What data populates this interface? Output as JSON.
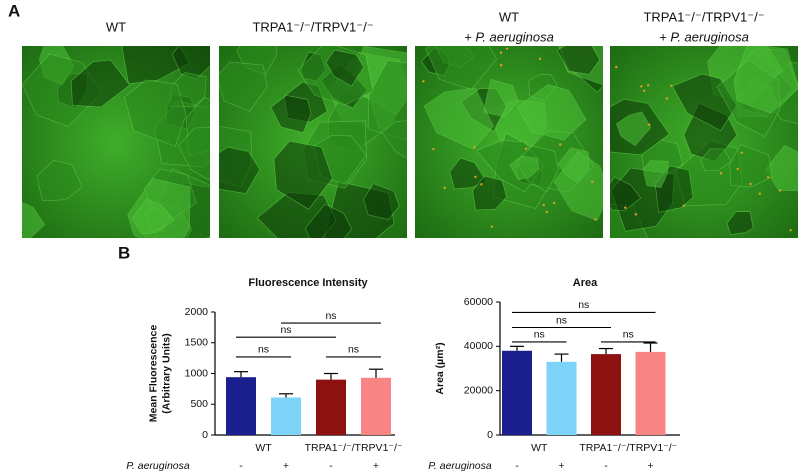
{
  "panel_a": {
    "label": "A",
    "images": [
      {
        "caption": [
          "WT"
        ]
      },
      {
        "caption": [
          "TRPA1⁻/⁻/TRPV1⁻/⁻"
        ]
      },
      {
        "caption": [
          "WT",
          "+ P. aeruginosa"
        ]
      },
      {
        "caption": [
          "TRPA1⁻/⁻/TRPV1⁻/⁻",
          "+ P. aeruginosa"
        ]
      }
    ]
  },
  "panel_b": {
    "label": "B"
  },
  "chart_data": [
    {
      "type": "bar",
      "title": "Fluorescence Intensity",
      "ylabel": [
        "Mean Fluorescence",
        "(Arbitrary Units)"
      ],
      "categories": [
        "-",
        "+",
        "-",
        "+"
      ],
      "groups": [
        "WT",
        "TRPA1⁻/⁻/TRPV1⁻/⁻"
      ],
      "row_label": "P. aeruginosa",
      "values": [
        940,
        610,
        900,
        930
      ],
      "errors": [
        90,
        60,
        100,
        140
      ],
      "colors": [
        "#1b1f8e",
        "#7dd3f8",
        "#8e1111",
        "#f98484"
      ],
      "ylim": [
        0,
        2000
      ],
      "yticks": [
        0,
        500,
        1000,
        1500,
        2000
      ],
      "comparisons": [
        {
          "pair": [
            0,
            1
          ],
          "y": 1270,
          "label": "ns"
        },
        {
          "pair": [
            2,
            3
          ],
          "y": 1270,
          "label": "ns"
        },
        {
          "pair": [
            0,
            2
          ],
          "y": 1590,
          "label": "ns"
        },
        {
          "pair": [
            1,
            3
          ],
          "y": 1820,
          "label": "ns"
        }
      ]
    },
    {
      "type": "bar",
      "title": "Area",
      "ylabel": [
        "Area (µm²)"
      ],
      "categories": [
        "-",
        "+",
        "-",
        "+"
      ],
      "groups": [
        "WT",
        "TRPA1⁻/⁻/TRPV1⁻/⁻"
      ],
      "row_label": "P. aeruginosa",
      "values": [
        38000,
        33000,
        36500,
        37500
      ],
      "errors": [
        2000,
        3500,
        2500,
        4000
      ],
      "colors": [
        "#1b1f8e",
        "#7dd3f8",
        "#8e1111",
        "#f98484"
      ],
      "ylim": [
        0,
        60000
      ],
      "yticks": [
        0,
        20000,
        40000,
        60000
      ],
      "comparisons": [
        {
          "pair": [
            0,
            1
          ],
          "y": 42000,
          "label": "ns"
        },
        {
          "pair": [
            2,
            3
          ],
          "y": 42000,
          "label": "ns"
        },
        {
          "pair": [
            0,
            2
          ],
          "y": 48500,
          "label": "ns"
        },
        {
          "pair": [
            0,
            3
          ],
          "y": 55300,
          "label": "ns"
        }
      ]
    }
  ]
}
